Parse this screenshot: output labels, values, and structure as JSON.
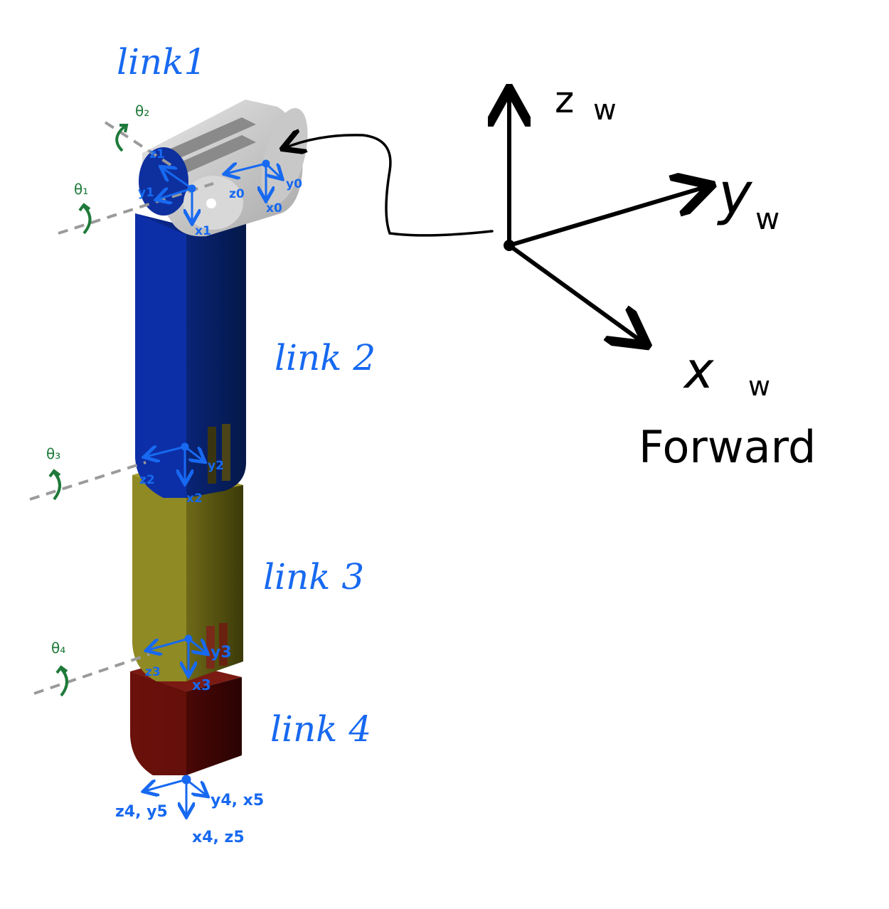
{
  "links": {
    "link1": "link1",
    "link2": "link 2",
    "link3": "link 3",
    "link4": "link 4"
  },
  "joint_angles": {
    "theta1": "θ₁",
    "theta2": "θ₂",
    "theta3": "θ₃",
    "theta4": "θ₄"
  },
  "frames": {
    "z0": "z0",
    "y0": "y0",
    "x0": "x0",
    "z1": "z1",
    "y1": "y1",
    "x1": "x1",
    "z2": "z2",
    "y2": "y2",
    "x2": "x2",
    "z3": "z3",
    "y3": "y3",
    "x3": "x3",
    "z4_y5": "z4, y5",
    "y4_x5": "y4, x5",
    "x4_z5": "x4, z5"
  },
  "world": {
    "z": "z",
    "y": "y",
    "x": "x",
    "sub": "w",
    "forward": "Forward"
  },
  "colors": {
    "annotation_blue": "#1769f0",
    "angle_green": "#1f7a3a",
    "link1_gray": "#c8c8c8",
    "link2_blue": "#0a2a8c",
    "link3_olive": "#8a8420",
    "link4_red": "#5a0a08"
  }
}
